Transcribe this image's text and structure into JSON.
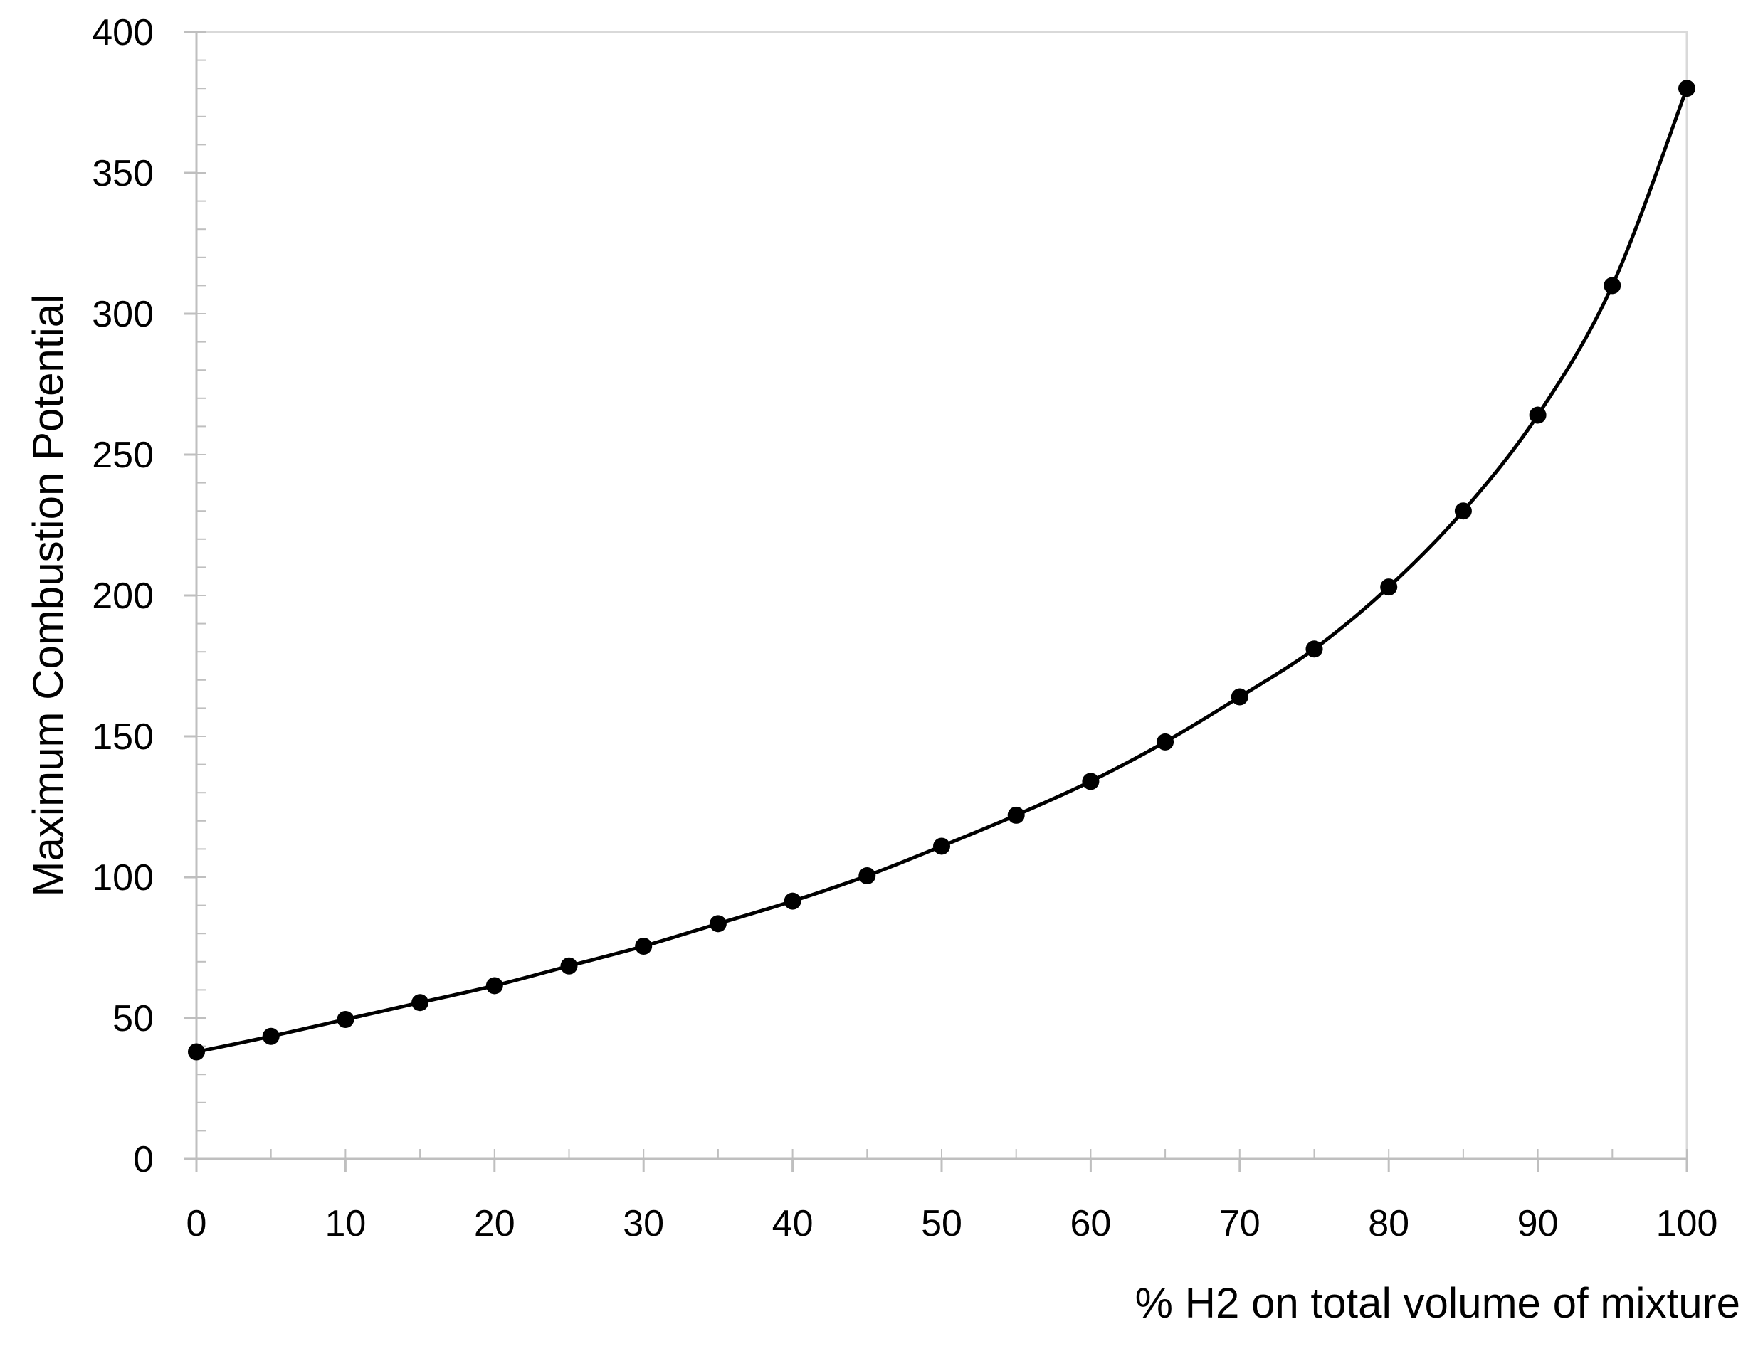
{
  "chart_data": {
    "type": "line",
    "title": "",
    "xlabel": "% H2 on total volume of mixture",
    "ylabel": "Maximum Combustion Potential",
    "xlim": [
      0,
      100
    ],
    "ylim": [
      0,
      400
    ],
    "x_ticks": [
      0,
      10,
      20,
      30,
      40,
      50,
      60,
      70,
      80,
      90,
      100
    ],
    "y_ticks": [
      0,
      50,
      100,
      150,
      200,
      250,
      300,
      350,
      400
    ],
    "x_minor_step": 5,
    "y_minor_step": 10,
    "grid": false,
    "legend": "none",
    "marker": "circle",
    "smooth": true,
    "line_color": "#000000",
    "series": [
      {
        "x": [
          0,
          5,
          10,
          15,
          20,
          25,
          30,
          35,
          40,
          45,
          50,
          55,
          60,
          65,
          70,
          75,
          80,
          85,
          90,
          95,
          100
        ],
        "y": [
          38,
          43.5,
          49.5,
          55.5,
          61.5,
          68.5,
          75.5,
          83.5,
          91.5,
          100.5,
          111,
          122,
          134,
          148,
          164,
          181,
          203,
          230,
          264,
          310,
          380
        ]
      }
    ]
  }
}
